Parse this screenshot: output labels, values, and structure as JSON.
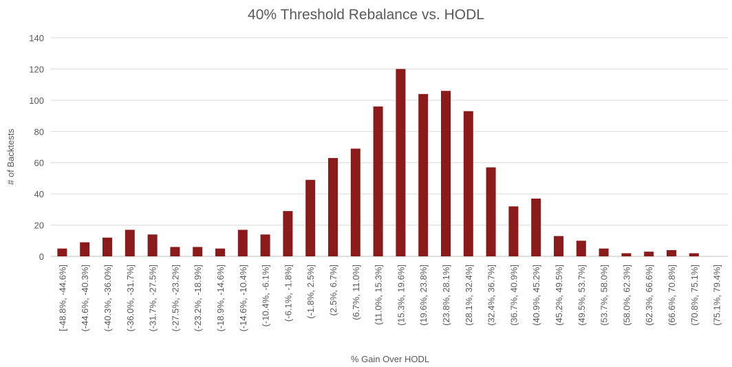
{
  "chart_data": {
    "type": "bar",
    "title": "40% Threshold Rebalance vs. HODL",
    "xlabel": "% Gain Over HODL",
    "ylabel": "# of Backtests",
    "ylim": [
      0,
      140
    ],
    "yticks": [
      0,
      20,
      40,
      60,
      80,
      100,
      120,
      140
    ],
    "grid": true,
    "bar_color": "#8b1a1a",
    "categories": [
      "[-48.8%, -44.6%]",
      "(-44.6%, -40.3%]",
      "(-40.3%, -36.0%]",
      "(-36.0%, -31.7%]",
      "(-31.7%, -27.5%]",
      "(-27.5%, -23.2%]",
      "(-23.2%, -18.9%]",
      "(-18.9%, -14.6%]",
      "(-14.6%, -10.4%]",
      "(-10.4%, -6.1%]",
      "(-6.1%, -1.8%]",
      "(-1.8%, 2.5%]",
      "(2.5%, 6.7%]",
      "(6.7%, 11.0%]",
      "(11.0%, 15.3%]",
      "(15.3%, 19.6%]",
      "(19.6%, 23.8%]",
      "(23.8%, 28.1%]",
      "(28.1%, 32.4%]",
      "(32.4%, 36.7%]",
      "(36.7%, 40.9%]",
      "(40.9%, 45.2%]",
      "(45.2%, 49.5%]",
      "(49.5%, 53.7%]",
      "(53.7%, 58.0%]",
      "(58.0%, 62.3%]",
      "(62.3%, 66.6%]",
      "(66.6%, 70.8%]",
      "(70.8%, 75.1%]",
      "(75.1%, 79.4%]"
    ],
    "values": [
      5,
      9,
      12,
      17,
      14,
      6,
      6,
      5,
      17,
      14,
      29,
      49,
      63,
      69,
      96,
      120,
      104,
      106,
      93,
      57,
      32,
      37,
      13,
      10,
      5,
      2,
      3,
      4,
      2,
      0
    ]
  }
}
